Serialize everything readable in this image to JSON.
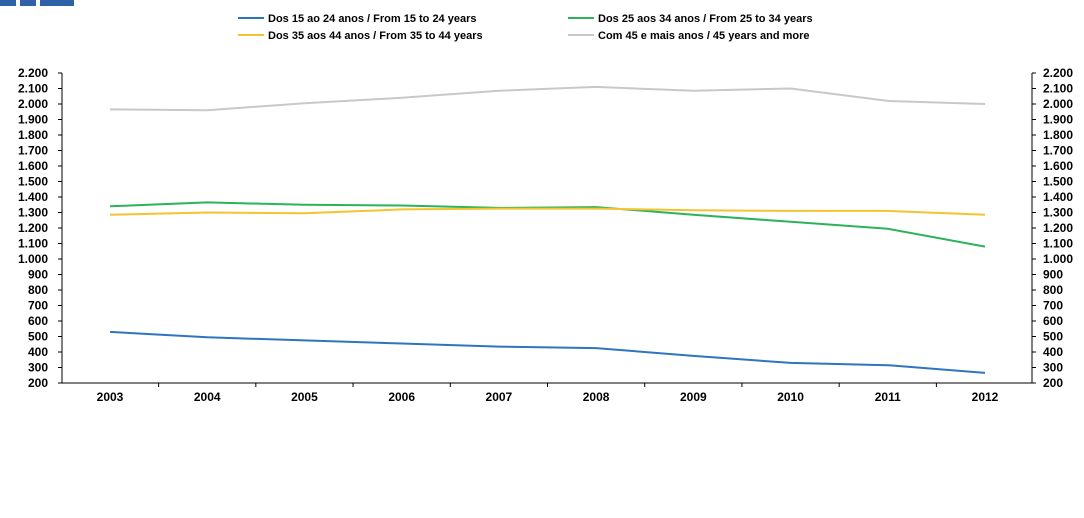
{
  "chart_data": {
    "type": "line",
    "x": [
      "2003",
      "2004",
      "2005",
      "2006",
      "2007",
      "2008",
      "2009",
      "2010",
      "2011",
      "2012"
    ],
    "ylim": [
      200,
      2200
    ],
    "ytick_step": 100,
    "y_ticks": [
      "200",
      "300",
      "400",
      "500",
      "600",
      "700",
      "800",
      "900",
      "1.000",
      "1.100",
      "1.200",
      "1.300",
      "1.400",
      "1.500",
      "1.600",
      "1.700",
      "1.800",
      "1.900",
      "2.000",
      "2.100",
      "2.200"
    ],
    "grid": false,
    "dual_y_axis": true,
    "legend_position": "top-center",
    "series": [
      {
        "name": "Dos 15 ao 24 anos / From 15 to 24 years",
        "color": "#2e75c0",
        "values": [
          530,
          495,
          475,
          455,
          435,
          425,
          375,
          330,
          315,
          265
        ]
      },
      {
        "name": "Dos 25 aos 34 anos / From 25 to 34 years",
        "color": "#2bb35a",
        "values": [
          1340,
          1365,
          1350,
          1345,
          1330,
          1335,
          1285,
          1240,
          1195,
          1080
        ]
      },
      {
        "name": "Dos 35 aos 44 anos / From 35 to 44 years",
        "color": "#f5c231",
        "values": [
          1285,
          1300,
          1295,
          1320,
          1325,
          1325,
          1315,
          1310,
          1310,
          1285
        ]
      },
      {
        "name": "Com 45 e mais anos / 45 years and more",
        "color": "#c8c8c8",
        "values": [
          1965,
          1960,
          2005,
          2040,
          2085,
          2110,
          2085,
          2100,
          2020,
          2000
        ]
      }
    ]
  }
}
